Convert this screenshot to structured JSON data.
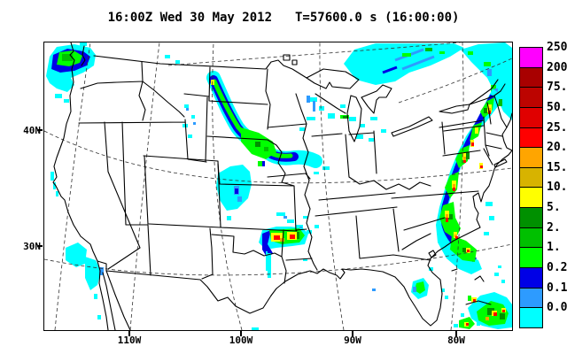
{
  "title": {
    "datetime": "16:00Z Wed 30 May 2012",
    "timer": "T=57600.0 s (16:00:00)"
  },
  "axes": {
    "y": [
      "40N",
      "30N"
    ],
    "x": [
      "110W",
      "100W",
      "90W",
      "80W"
    ]
  },
  "legend": {
    "levels": [
      "250.",
      "200.",
      "75.",
      "50.",
      "25.",
      "20.",
      "15.",
      "10.",
      "5.",
      "2.",
      "1.",
      "0.25",
      "0.10",
      "0.01"
    ],
    "colors": [
      "#FF00FF",
      "#A80000",
      "#BC0400",
      "#E00000",
      "#FF0000",
      "#FFA500",
      "#D7B300",
      "#FFFF00",
      "#009000",
      "#00C000",
      "#00FF00",
      "#0000E6",
      "#2D9BFF",
      "#00FFFF"
    ]
  },
  "map_colors": {
    "precip_trace": "#00FFFF",
    "precip_light": "#2D9BFF",
    "precip_blue": "#0000E6",
    "precip_green": "#00FF00",
    "precip_midgreen": "#00C000",
    "precip_darkgreen": "#009000",
    "precip_yellow": "#FFFF00",
    "precip_orange": "#FFA500",
    "precip_red": "#FF0000",
    "outline": "#000000"
  }
}
